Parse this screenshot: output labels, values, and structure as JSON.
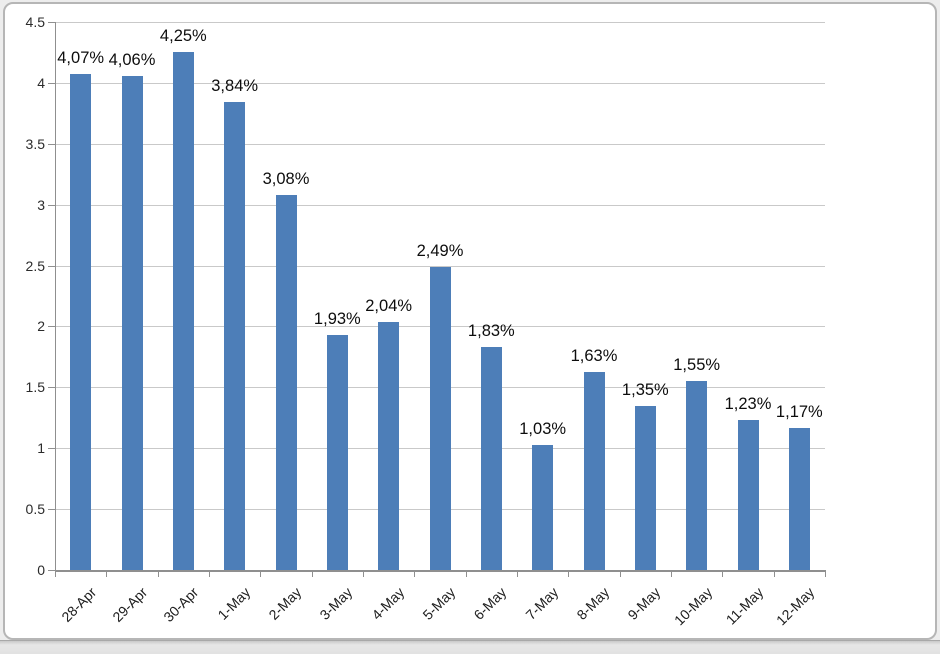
{
  "frame": {
    "background_color": "#ffffff",
    "border_color": "#b6b6b6",
    "footer_strip_color": "#e2e2e2"
  },
  "chart_data": {
    "type": "bar",
    "title": "",
    "xlabel": "",
    "ylabel": "",
    "categories": [
      "28-Apr",
      "29-Apr",
      "30-Apr",
      "1-May",
      "2-May",
      "3-May",
      "4-May",
      "5-May",
      "6-May",
      "7-May",
      "8-May",
      "9-May",
      "10-May",
      "11-May",
      "12-May"
    ],
    "values": [
      4.07,
      4.06,
      4.25,
      3.84,
      3.08,
      1.93,
      2.04,
      2.49,
      1.83,
      1.03,
      1.63,
      1.35,
      1.55,
      1.23,
      1.17
    ],
    "data_labels": [
      "4,07%",
      "4,06%",
      "4,25%",
      "3,84%",
      "3,08%",
      "1,93%",
      "2,04%",
      "2,49%",
      "1,83%",
      "1,03%",
      "1,63%",
      "1,35%",
      "1,55%",
      "1,23%",
      "1,17%"
    ],
    "ylim": [
      0,
      4.5
    ],
    "yticks": [
      0,
      0.5,
      1,
      1.5,
      2,
      2.5,
      3,
      3.5,
      4,
      4.5
    ],
    "ytick_labels": [
      "0",
      "0.5",
      "1",
      "1.5",
      "2",
      "2.5",
      "3",
      "3.5",
      "4",
      "4.5"
    ],
    "grid": true,
    "legend": false,
    "bar_color": "#4d7eb8",
    "gridline_color": "#c9c9c9",
    "axis_color": "#8f8f8f",
    "label_color": "#0d0d0d"
  }
}
